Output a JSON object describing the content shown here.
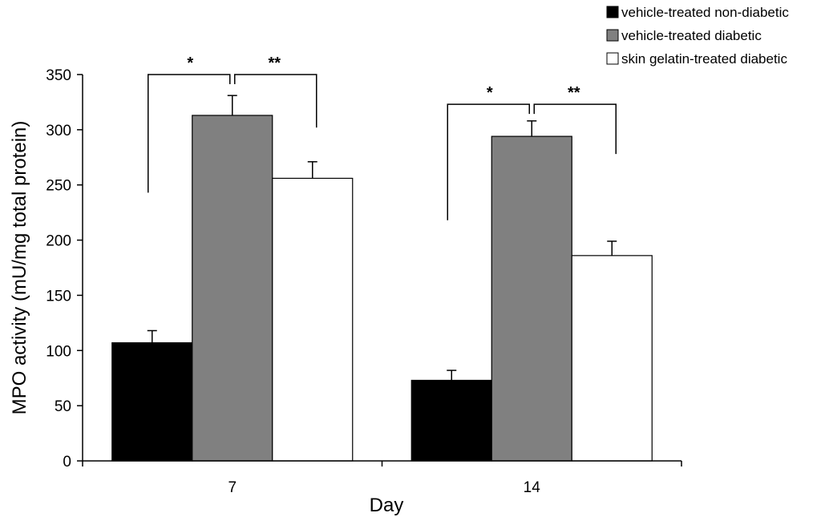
{
  "chart_data": {
    "type": "bar",
    "title": "",
    "xlabel": "Day",
    "ylabel": "MPO activity (mU/mg total protein)",
    "ylim": [
      0,
      350
    ],
    "yticks": [
      0,
      50,
      100,
      150,
      200,
      250,
      300,
      350
    ],
    "categories": [
      "7",
      "14"
    ],
    "series": [
      {
        "name": "vehicle-treated non-diabetic",
        "color": "#000000",
        "values": [
          107,
          73
        ],
        "errors": [
          11,
          9
        ]
      },
      {
        "name": "vehicle-treated diabetic",
        "color": "#808080",
        "values": [
          313,
          294
        ],
        "errors": [
          18,
          14
        ]
      },
      {
        "name": "skin gelatin-treated diabetic",
        "color": "#ffffff",
        "values": [
          256,
          186
        ],
        "errors": [
          15,
          13
        ]
      }
    ],
    "significance": [
      {
        "category": "7",
        "left_label": "*",
        "right_label": "**",
        "left_start": 243,
        "bracket_top": 350,
        "right_end": 302
      },
      {
        "category": "14",
        "left_label": "*",
        "right_label": "**",
        "left_start": 218,
        "bracket_top": 323,
        "right_end": 278
      }
    ],
    "legend_position": "top-right"
  }
}
